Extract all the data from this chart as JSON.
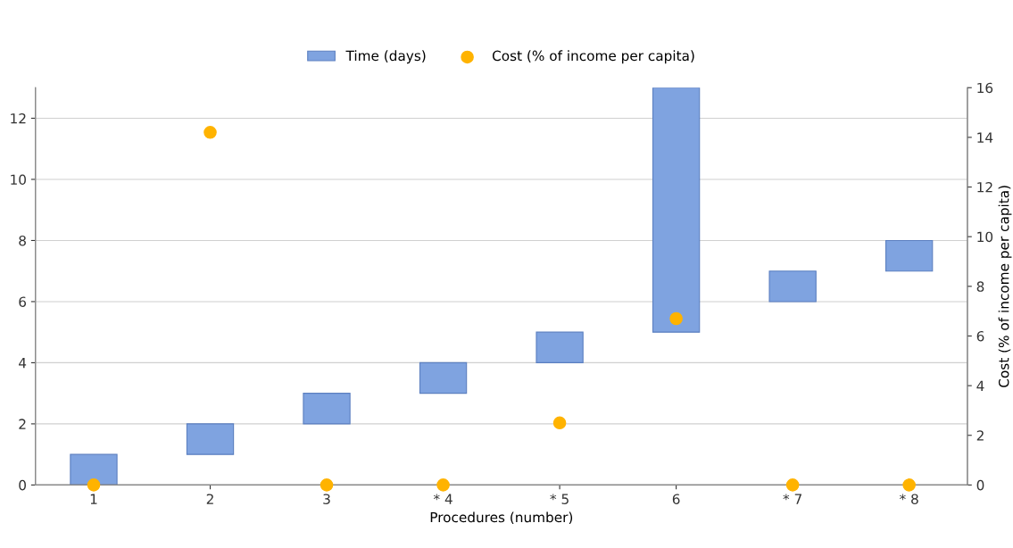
{
  "chart_data": {
    "type": "bar",
    "xlabel": "Procedures (number)",
    "y2label": "Cost (% of income per capita)",
    "categories": [
      "1",
      "2",
      "3",
      "* 4",
      "* 5",
      "6",
      "* 7",
      "* 8"
    ],
    "series": [
      {
        "name": "Time (days)",
        "color": "#7fa3e0",
        "base": [
          0,
          1,
          2,
          3,
          4,
          5,
          6,
          7
        ],
        "values": [
          1,
          1,
          1,
          1,
          1,
          8,
          1,
          1
        ]
      },
      {
        "name": "Cost (% of income per capita)",
        "type": "scatter",
        "axis": "y2",
        "color": "#ffb300",
        "values": [
          0,
          14.2,
          0,
          0,
          2.5,
          6.7,
          0,
          0
        ]
      }
    ],
    "ylim": [
      0,
      13
    ],
    "yticks": [
      0,
      2,
      4,
      6,
      8,
      10,
      12
    ],
    "y2lim": [
      0,
      16
    ],
    "y2ticks": [
      0,
      2,
      4,
      6,
      8,
      10,
      12,
      14,
      16
    ],
    "grid": "y",
    "legend": "top",
    "marker": "circle"
  }
}
